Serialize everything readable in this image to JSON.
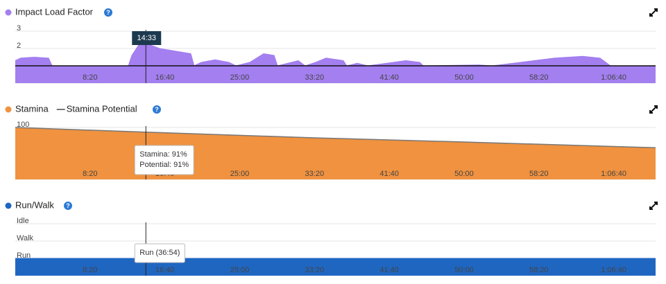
{
  "chart_data": [
    {
      "type": "area",
      "x": [
        0,
        37,
        130,
        223,
        246,
        756,
        779,
        825,
        873,
        965,
        1104,
        1173,
        1196,
        1243,
        1336,
        1428,
        1475,
        1567,
        1660,
        1730,
        1753,
        1892,
        1938,
        2008,
        2077,
        2193,
        2216,
        2286,
        2356,
        2611,
        2704,
        2727,
        3098,
        3190,
        3468,
        3607,
        3793,
        3909,
        3978,
        4280
      ],
      "series": [
        {
          "name": "Impact Load Factor",
          "color": "#a37ff0",
          "values": [
            1.3,
            1.45,
            1.5,
            1.45,
            1.0,
            1.0,
            1.6,
            2.2,
            2.3,
            2.0,
            1.8,
            1.7,
            1.0,
            1.2,
            1.35,
            1.2,
            1.0,
            1.2,
            1.7,
            1.6,
            1.0,
            1.3,
            1.0,
            1.2,
            1.45,
            1.3,
            1.0,
            1.15,
            1.0,
            1.3,
            1.2,
            1.0,
            1.05,
            1.0,
            1.3,
            1.45,
            1.55,
            1.45,
            1.0,
            1.0
          ]
        }
      ],
      "xlim": [
        0,
        4280
      ],
      "xticks": [
        {
          "value": 500,
          "label": "8:20"
        },
        {
          "value": 1000,
          "label": "16:40"
        },
        {
          "value": 1500,
          "label": "25:00"
        },
        {
          "value": 2000,
          "label": "33:20"
        },
        {
          "value": 2500,
          "label": "41:40"
        },
        {
          "value": 3000,
          "label": "50:00"
        },
        {
          "value": 3500,
          "label": "58:20"
        },
        {
          "value": 4000,
          "label": "1:06:40"
        }
      ],
      "ylim": [
        0,
        3
      ],
      "yticks": [
        0,
        1,
        2,
        3
      ],
      "grid": true,
      "reference_line": 1,
      "crosshair": {
        "value": 873,
        "label": "14:33"
      }
    },
    {
      "type": "area",
      "x": [
        0,
        873,
        2000,
        3000,
        4280
      ],
      "series": [
        {
          "name": "Stamina",
          "color": "#f0923f",
          "type": "area",
          "values": [
            100,
            91,
            80,
            72,
            61
          ]
        },
        {
          "name": "Stamina Potential",
          "color": "#777777",
          "type": "line",
          "values": [
            100,
            91,
            80,
            72,
            61
          ]
        }
      ],
      "xlim": [
        0,
        4280
      ],
      "xticks": [
        {
          "value": 500,
          "label": "8:20"
        },
        {
          "value": 1000,
          "label": "16:40"
        },
        {
          "value": 1500,
          "label": "25:00"
        },
        {
          "value": 2000,
          "label": "33:20"
        },
        {
          "value": 2500,
          "label": "41:40"
        },
        {
          "value": 3000,
          "label": "50:00"
        },
        {
          "value": 3500,
          "label": "58:20"
        },
        {
          "value": 4000,
          "label": "1:06:40"
        }
      ],
      "ylim": [
        0,
        100
      ],
      "yticks": [
        0,
        50,
        100
      ],
      "grid": true,
      "tooltip": [
        "Stamina: 91%",
        "Potential: 91%"
      ]
    },
    {
      "type": "area",
      "x": [
        0,
        4280
      ],
      "series": [
        {
          "name": "Run/Walk",
          "color": "#1f66c1",
          "values": [
            0,
            0
          ]
        }
      ],
      "xlim": [
        0,
        4280
      ],
      "xticks": [
        {
          "value": 500,
          "label": "8:20"
        },
        {
          "value": 1000,
          "label": "16:40"
        },
        {
          "value": 1500,
          "label": "25:00"
        },
        {
          "value": 2000,
          "label": "33:20"
        },
        {
          "value": 2500,
          "label": "41:40"
        },
        {
          "value": 3000,
          "label": "50:00"
        },
        {
          "value": 3500,
          "label": "58:20"
        },
        {
          "value": 4000,
          "label": "1:06:40"
        }
      ],
      "ylim": [
        -1,
        2
      ],
      "yticks": [
        {
          "value": 0,
          "label": "Run"
        },
        {
          "value": 1,
          "label": "Walk"
        },
        {
          "value": 2,
          "label": "Idle"
        }
      ],
      "grid": true,
      "tooltip": [
        "Run (36:54)"
      ]
    }
  ]
}
